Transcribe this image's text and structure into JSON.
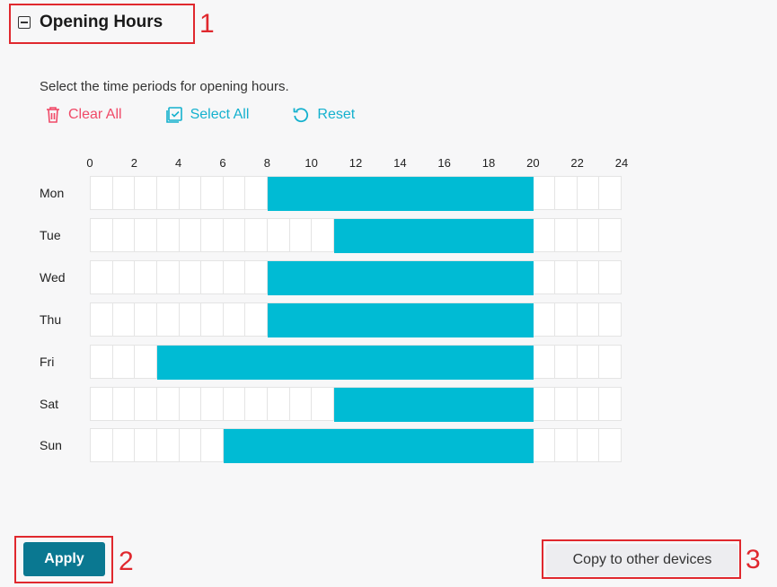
{
  "section": {
    "title": "Opening Hours"
  },
  "instruction": "Select the time periods for opening hours.",
  "actions": {
    "clear_all": "Clear All",
    "select_all": "Select All",
    "reset": "Reset"
  },
  "colors": {
    "selected": "#00bbd4",
    "clear": "#f04a68",
    "accent": "#14b1ce",
    "apply": "#0a7891",
    "annotation": "#e0282e"
  },
  "hour_labels": [
    "0",
    "2",
    "4",
    "6",
    "8",
    "10",
    "12",
    "14",
    "16",
    "18",
    "20",
    "22",
    "24"
  ],
  "days": [
    {
      "label": "Mon",
      "start": 8,
      "end": 20
    },
    {
      "label": "Tue",
      "start": 11,
      "end": 20
    },
    {
      "label": "Wed",
      "start": 8,
      "end": 20
    },
    {
      "label": "Thu",
      "start": 8,
      "end": 20
    },
    {
      "label": "Fri",
      "start": 3,
      "end": 20
    },
    {
      "label": "Sat",
      "start": 11,
      "end": 20
    },
    {
      "label": "Sun",
      "start": 6,
      "end": 20
    }
  ],
  "buttons": {
    "apply": "Apply",
    "copy": "Copy to other devices"
  },
  "annotations": [
    "1",
    "2",
    "3"
  ]
}
